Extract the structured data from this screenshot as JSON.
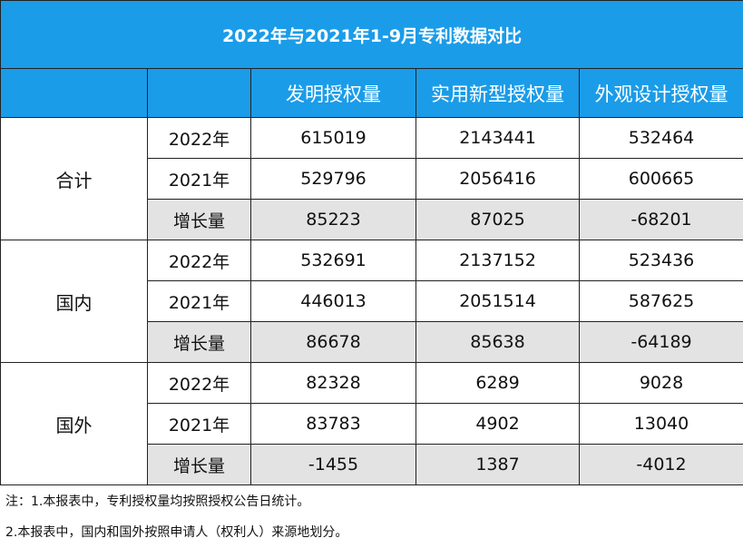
{
  "title": "2022年与2021年1-9月专利数据对比",
  "columns": [
    "发明授权量",
    "实用新型授权量",
    "外观设计授权量"
  ],
  "groups": [
    {
      "name": "合计",
      "rows": [
        {
          "label": "2022年",
          "values": [
            "615019",
            "2143441",
            "532464"
          ]
        },
        {
          "label": "2021年",
          "values": [
            "529796",
            "2056416",
            "600665"
          ]
        },
        {
          "label": "增长量",
          "values": [
            "85223",
            "87025",
            "-68201"
          ]
        }
      ]
    },
    {
      "name": "国内",
      "rows": [
        {
          "label": "2022年",
          "values": [
            "532691",
            "2137152",
            "523436"
          ]
        },
        {
          "label": "2021年",
          "values": [
            "446013",
            "2051514",
            "587625"
          ]
        },
        {
          "label": "增长量",
          "values": [
            "86678",
            "85638",
            "-64189"
          ]
        }
      ]
    },
    {
      "name": "国外",
      "rows": [
        {
          "label": "2022年",
          "values": [
            "82328",
            "6289",
            "9028"
          ]
        },
        {
          "label": "2021年",
          "values": [
            "83783",
            "4902",
            "13040"
          ]
        },
        {
          "label": "增长量",
          "values": [
            "-1455",
            "1387",
            "-4012"
          ]
        }
      ]
    }
  ],
  "notes": [
    "注：1.本报表中，专利授权量均按照授权公告日统计。",
    "2.本报表中，国内和国外按照申请人（权利人）来源地划分。"
  ],
  "colors": {
    "header_bg": "#1b9ce8",
    "growth_bg": "#e3e3e3"
  }
}
